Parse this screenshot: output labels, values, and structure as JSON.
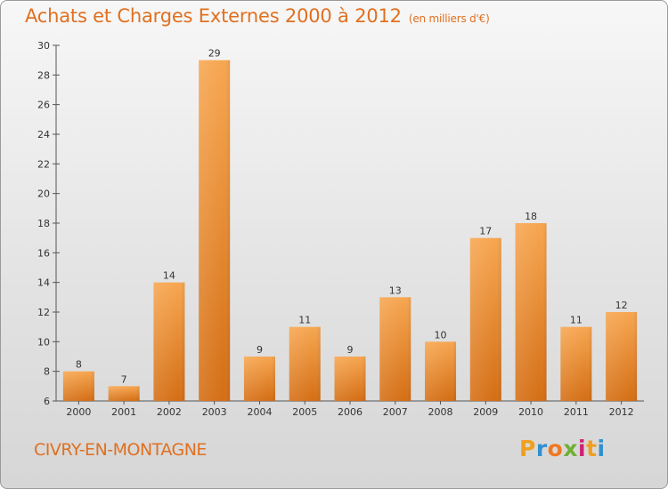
{
  "header": {
    "title": "Achats et Charges Externes 2000 à 2012",
    "subtitle": "(en milliers d'€)"
  },
  "footer": {
    "commune": "CIVRY-EN-MONTAGNE",
    "logo": {
      "letters": [
        "P",
        "r",
        "o",
        "x",
        "i",
        "t",
        "i"
      ],
      "colors": [
        "#f0a020",
        "#3090d0",
        "#f07820",
        "#70b030",
        "#d02070",
        "#f0a020",
        "#3090d0"
      ]
    }
  },
  "colors": {
    "bar_top": "#f7a650",
    "bar_bottom": "#d46e14",
    "title": "#e07020"
  },
  "chart_data": {
    "type": "bar",
    "categories": [
      "2000",
      "2001",
      "2002",
      "2003",
      "2004",
      "2005",
      "2006",
      "2007",
      "2008",
      "2009",
      "2010",
      "2011",
      "2012"
    ],
    "values": [
      8,
      7,
      14,
      29,
      9,
      11,
      9,
      13,
      10,
      17,
      18,
      11,
      12
    ],
    "title": "Achats et Charges Externes 2000 à 2012",
    "xlabel": "",
    "ylabel": "",
    "ylim": [
      6,
      30
    ],
    "yticks": [
      6,
      8,
      10,
      12,
      14,
      16,
      18,
      20,
      22,
      24,
      26,
      28,
      30
    ],
    "grid": false,
    "legend": "none"
  }
}
